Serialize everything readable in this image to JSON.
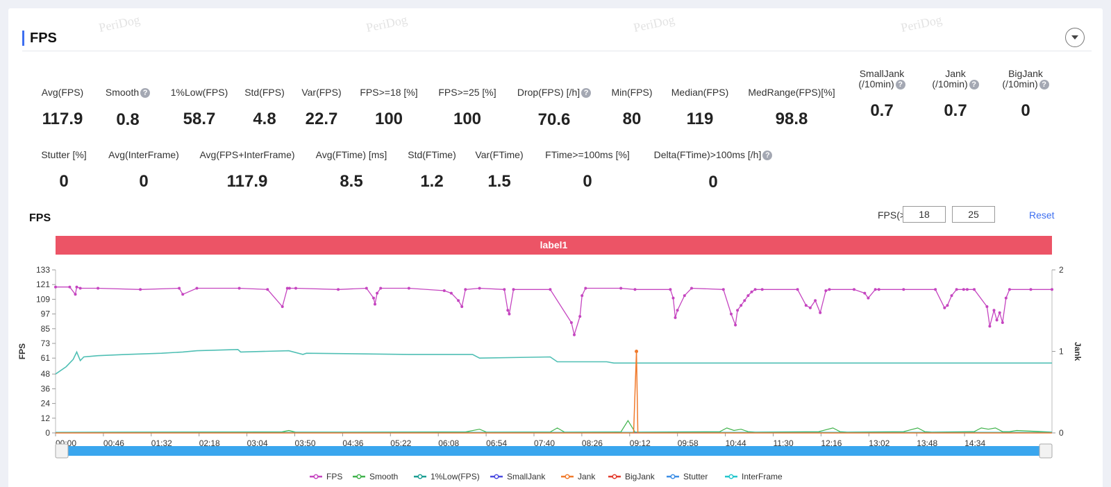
{
  "header": {
    "title": "FPS",
    "watermark": "PeriDog"
  },
  "stats_row1": [
    {
      "label": "Avg(FPS)",
      "value": "117.9"
    },
    {
      "label": "Smooth",
      "value": "0.8",
      "help": true
    },
    {
      "label": "1%Low(FPS)",
      "value": "58.7"
    },
    {
      "label": "Std(FPS)",
      "value": "4.8"
    },
    {
      "label": "Var(FPS)",
      "value": "22.7"
    },
    {
      "label": "FPS>=18 [%]",
      "value": "100"
    },
    {
      "label": "FPS>=25 [%]",
      "value": "100"
    },
    {
      "label": "Drop(FPS) [/h]",
      "value": "70.6",
      "help": true
    },
    {
      "label": "Min(FPS)",
      "value": "80"
    },
    {
      "label": "Median(FPS)",
      "value": "119"
    },
    {
      "label": "MedRange(FPS)[%]",
      "value": "98.8"
    },
    {
      "label": "SmallJank",
      "label2": "(/10min)",
      "value": "0.7",
      "help": true
    },
    {
      "label": "Jank",
      "label2": "(/10min)",
      "value": "0.7",
      "help": true
    },
    {
      "label": "BigJank",
      "label2": "(/10min)",
      "value": "0",
      "help": true
    }
  ],
  "stats_row2": [
    {
      "label": "Stutter [%]",
      "value": "0"
    },
    {
      "label": "Avg(InterFrame)",
      "value": "0"
    },
    {
      "label": "Avg(FPS+InterFrame)",
      "value": "117.9"
    },
    {
      "label": "Avg(FTime) [ms]",
      "value": "8.5"
    },
    {
      "label": "Std(FTime)",
      "value": "1.2"
    },
    {
      "label": "Var(FTime)",
      "value": "1.5"
    },
    {
      "label": "FTime>=100ms [%]",
      "value": "0"
    },
    {
      "label": "Delta(FTime)>100ms [/h]",
      "value": "0",
      "help": true
    }
  ],
  "chart_panel": {
    "title": "FPS",
    "threshold_label": "FPS(>=)",
    "threshold_low": "18",
    "threshold_high": "25",
    "reset_label": "Reset",
    "band_label": "label1"
  },
  "chart_data": {
    "type": "line",
    "ylabel": "FPS",
    "y2label": "Jank",
    "ylim": [
      0,
      133
    ],
    "y_ticks": [
      0,
      12,
      24,
      36,
      48,
      61,
      73,
      85,
      97,
      109,
      121,
      133
    ],
    "y2lim": [
      0,
      2
    ],
    "y2_ticks": [
      0,
      1,
      2
    ],
    "x_ticks": [
      "00:00",
      "00:46",
      "01:32",
      "02:18",
      "03:04",
      "03:50",
      "04:36",
      "05:22",
      "06:08",
      "06:54",
      "07:40",
      "08:26",
      "09:12",
      "09:58",
      "10:44",
      "11:30",
      "12:16",
      "13:02",
      "13:48",
      "14:34"
    ],
    "xlim_seconds": [
      0,
      932
    ],
    "legend": [
      "FPS",
      "Smooth",
      "1%Low(FPS)",
      "SmallJank",
      "Jank",
      "BigJank",
      "Stutter",
      "InterFrame"
    ],
    "legend_position": "bottom",
    "colors": {
      "FPS": "#c545c0",
      "Smooth": "#3fb24a",
      "1%Low(FPS)": "#1a9e92",
      "SmallJank": "#4a4ae0",
      "Jank": "#f07a2c",
      "BigJank": "#e23a2c",
      "Stutter": "#3c8ee6",
      "InterFrame": "#22c6cc"
    },
    "series": [
      {
        "name": "FPS",
        "x": [
          0,
          20,
          28,
          30,
          35,
          60,
          120,
          175,
          180,
          200,
          260,
          300,
          321,
          328,
          331,
          340,
          400,
          440,
          450,
          452,
          455,
          460,
          500,
          550,
          560,
          570,
          575,
          580,
          600,
          635,
          640,
          642,
          648,
          700,
          730,
          734,
          742,
          745,
          750,
          800,
          820,
          870,
          874,
          877,
          880,
          890,
          900,
          945,
          956,
          962,
          965,
          970,
          975,
          980,
          985,
          990,
          1000,
          1050,
          1062,
          1068,
          1075,
          1082,
          1090,
          1095,
          1130,
          1145,
          1150,
          1160,
          1165,
          1200,
          1245,
          1258,
          1262,
          1268,
          1275,
          1285,
          1290,
          1300,
          1318,
          1322,
          1328,
          1332,
          1336,
          1340,
          1345,
          1350,
          1380,
          1410
        ],
        "values": [
          119,
          119,
          113,
          119,
          118,
          118,
          117,
          118,
          113,
          118,
          118,
          117,
          103,
          118,
          118,
          118,
          117,
          118,
          110,
          105,
          114,
          118,
          118,
          116,
          114,
          108,
          103,
          117,
          118,
          117,
          100,
          97,
          117,
          117,
          90,
          80,
          95,
          112,
          118,
          118,
          117,
          117,
          110,
          94,
          100,
          112,
          118,
          117,
          97,
          88,
          100,
          104,
          108,
          112,
          115,
          117,
          117,
          117,
          104,
          102,
          108,
          98,
          116,
          117,
          117,
          114,
          110,
          117,
          117,
          117,
          117,
          102,
          104,
          112,
          117,
          117,
          117,
          117,
          103,
          87,
          100,
          92,
          98,
          90,
          110,
          117,
          117,
          117
        ]
      },
      {
        "name": "1%Low(FPS)",
        "x": [
          0,
          15,
          25,
          30,
          35,
          40,
          60,
          100,
          150,
          180,
          200,
          258,
          262,
          330,
          350,
          355,
          500,
          590,
          600,
          700,
          710,
          715,
          770,
          780,
          790,
          840,
          1410
        ],
        "values": [
          48,
          54,
          60,
          66,
          59,
          62,
          63,
          64,
          65,
          66,
          67,
          68,
          66,
          67,
          64,
          65,
          64,
          64,
          61,
          62,
          58,
          58,
          58,
          58,
          57,
          57,
          57
        ]
      },
      {
        "name": "Smooth",
        "x": [
          0,
          100,
          320,
          330,
          340,
          580,
          600,
          610,
          700,
          710,
          720,
          800,
          810,
          820,
          940,
          950,
          960,
          970,
          980,
          990,
          1080,
          1100,
          1110,
          1120,
          1200,
          1220,
          1230,
          1240,
          1300,
          1310,
          1320,
          1330,
          1340,
          1350,
          1360,
          1410
        ],
        "values": [
          0.5,
          0.7,
          0.8,
          2,
          0.6,
          0.8,
          3,
          0.6,
          0.8,
          4,
          0.7,
          0.8,
          10,
          0.7,
          1,
          4,
          2,
          3,
          1,
          0.6,
          1,
          4,
          1,
          0.7,
          1,
          4,
          1,
          0.7,
          1,
          4,
          3,
          4,
          1,
          1,
          2,
          0.7
        ]
      },
      {
        "name": "Jank",
        "x": [
          0,
          818,
          820,
          822,
          824,
          1410
        ],
        "values": [
          0,
          0,
          0.5,
          1,
          0,
          0
        ]
      },
      {
        "name": "BigJank",
        "x": [
          0,
          1410
        ],
        "values": [
          0,
          0
        ]
      },
      {
        "name": "InterFrame",
        "x": [
          0,
          1410
        ],
        "values": [
          0,
          0
        ]
      }
    ]
  }
}
